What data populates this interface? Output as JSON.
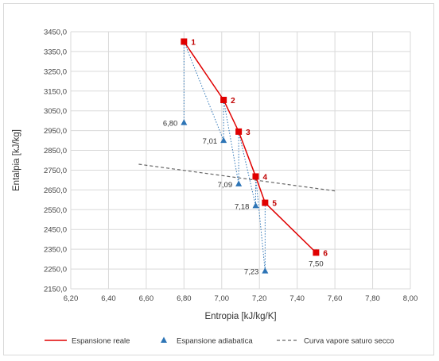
{
  "chart_data": {
    "type": "scatter",
    "title": "",
    "xlabel": "Entropia [kJ/kg/K]",
    "ylabel": "Entalpia [kJ/kg]",
    "xlim": [
      6.2,
      8.0
    ],
    "ylim": [
      2150,
      3450
    ],
    "xticks": [
      "6,20",
      "6,40",
      "6,60",
      "6,80",
      "7,00",
      "7,20",
      "7,40",
      "7,60",
      "7,80",
      "8,00"
    ],
    "yticks": [
      "2150,0",
      "2250,0",
      "2350,0",
      "2450,0",
      "2550,0",
      "2650,0",
      "2750,0",
      "2850,0",
      "2950,0",
      "3050,0",
      "3150,0",
      "3250,0",
      "3350,0",
      "3450,0"
    ],
    "grid": true,
    "legend_position": "bottom",
    "series": [
      {
        "name": "Espansione reale",
        "color": "#e00000",
        "marker": "square",
        "points": [
          {
            "x": 6.8,
            "y": 3400,
            "label": "1"
          },
          {
            "x": 7.01,
            "y": 3105,
            "label": "2"
          },
          {
            "x": 7.09,
            "y": 2945,
            "label": "3"
          },
          {
            "x": 7.18,
            "y": 2718,
            "label": "4"
          },
          {
            "x": 7.23,
            "y": 2585,
            "label": "5"
          },
          {
            "x": 7.5,
            "y": 2333,
            "label": "6"
          }
        ]
      },
      {
        "name": "Espansione adiabatica",
        "color": "#2e75b6",
        "marker": "triangle",
        "points": [
          {
            "x": 6.8,
            "y": 2990,
            "label": "6,80"
          },
          {
            "x": 7.01,
            "y": 2900,
            "label": "7,01"
          },
          {
            "x": 7.09,
            "y": 2680,
            "label": "7,09"
          },
          {
            "x": 7.18,
            "y": 2570,
            "label": "7,18"
          },
          {
            "x": 7.23,
            "y": 2240,
            "label": "7,23"
          },
          {
            "x": 7.5,
            "y": 2333,
            "label": "7,50"
          }
        ]
      },
      {
        "name": "Curva vapore saturo secco",
        "color": "#666666",
        "style": "dashed",
        "points": [
          {
            "x": 6.56,
            "y": 2780
          },
          {
            "x": 7.6,
            "y": 2645
          }
        ]
      }
    ]
  }
}
